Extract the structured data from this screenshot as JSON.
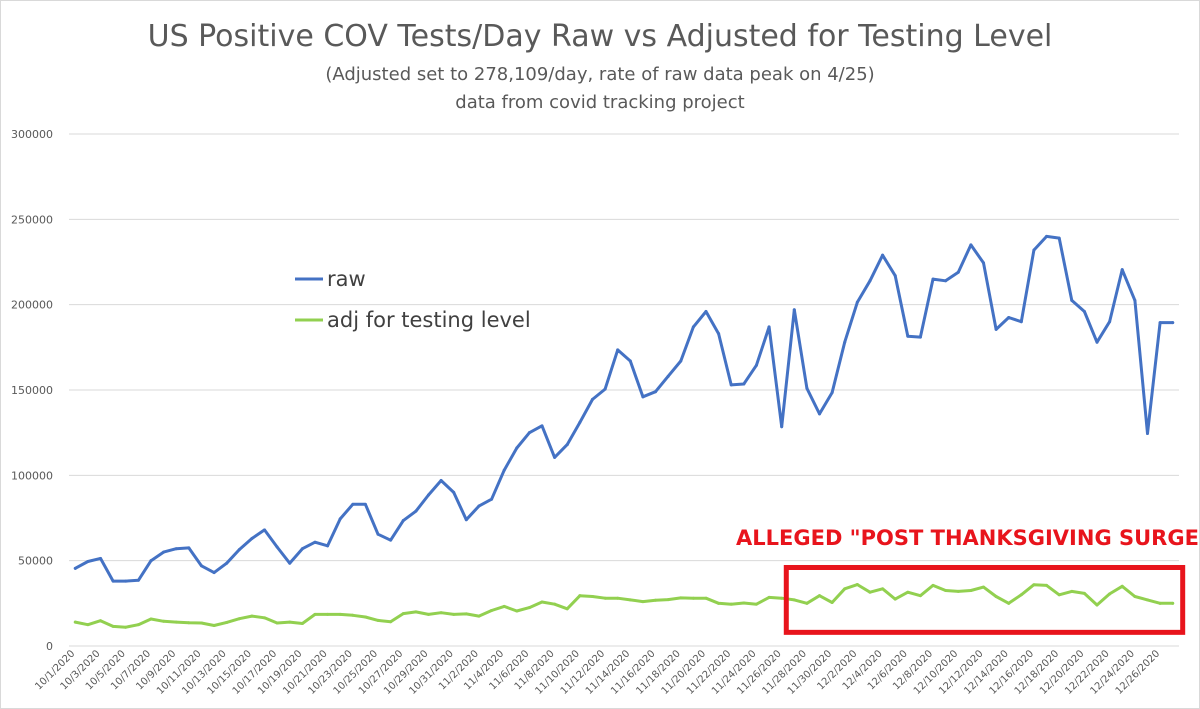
{
  "chart_data": {
    "type": "line",
    "title": "US Positive COV Tests/Day Raw vs Adjusted for Testing Level",
    "subtitle": "(Adjusted set to 278,109/day, rate of raw data peak on 4/25)",
    "subtitle2": "data from covid tracking project",
    "xlabel": "",
    "ylabel": "",
    "ylim": [
      0,
      300000
    ],
    "yticks": [
      0,
      50000,
      100000,
      150000,
      200000,
      250000,
      300000
    ],
    "grid": "horizontal",
    "legend_position": "center-left",
    "x": [
      "10/1/2020",
      "10/2/2020",
      "10/3/2020",
      "10/4/2020",
      "10/5/2020",
      "10/6/2020",
      "10/7/2020",
      "10/8/2020",
      "10/9/2020",
      "10/10/2020",
      "10/11/2020",
      "10/12/2020",
      "10/13/2020",
      "10/14/2020",
      "10/15/2020",
      "10/16/2020",
      "10/17/2020",
      "10/18/2020",
      "10/19/2020",
      "10/20/2020",
      "10/21/2020",
      "10/22/2020",
      "10/23/2020",
      "10/24/2020",
      "10/25/2020",
      "10/26/2020",
      "10/27/2020",
      "10/28/2020",
      "10/29/2020",
      "10/30/2020",
      "10/31/2020",
      "11/1/2020",
      "11/2/2020",
      "11/3/2020",
      "11/4/2020",
      "11/5/2020",
      "11/6/2020",
      "11/7/2020",
      "11/8/2020",
      "11/9/2020",
      "11/10/2020",
      "11/11/2020",
      "11/12/2020",
      "11/13/2020",
      "11/14/2020",
      "11/15/2020",
      "11/16/2020",
      "11/17/2020",
      "11/18/2020",
      "11/19/2020",
      "11/20/2020",
      "11/21/2020",
      "11/22/2020",
      "11/23/2020",
      "11/24/2020",
      "11/25/2020",
      "11/26/2020",
      "11/27/2020",
      "11/28/2020",
      "11/29/2020",
      "11/30/2020",
      "12/1/2020",
      "12/2/2020",
      "12/3/2020",
      "12/4/2020",
      "12/5/2020",
      "12/6/2020",
      "12/7/2020",
      "12/8/2020",
      "12/9/2020",
      "12/10/2020",
      "12/11/2020",
      "12/12/2020",
      "12/13/2020",
      "12/14/2020",
      "12/15/2020",
      "12/16/2020",
      "12/17/2020",
      "12/18/2020",
      "12/19/2020",
      "12/20/2020",
      "12/21/2020",
      "12/22/2020",
      "12/23/2020",
      "12/24/2020",
      "12/25/2020",
      "12/26/2020",
      "12/27/2020"
    ],
    "xtick_labels": [
      "10/1/2020",
      "10/3/2020",
      "10/5/2020",
      "10/7/2020",
      "10/9/2020",
      "10/11/2020",
      "10/13/2020",
      "10/15/2020",
      "10/17/2020",
      "10/19/2020",
      "10/21/2020",
      "10/23/2020",
      "10/25/2020",
      "10/27/2020",
      "10/29/2020",
      "10/31/2020",
      "11/2/2020",
      "11/4/2020",
      "11/6/2020",
      "11/8/2020",
      "11/10/2020",
      "11/12/2020",
      "11/14/2020",
      "11/16/2020",
      "11/18/2020",
      "11/20/2020",
      "11/22/2020",
      "11/24/2020",
      "11/26/2020",
      "11/28/2020",
      "11/30/2020",
      "12/2/2020",
      "12/4/2020",
      "12/6/2020",
      "12/8/2020",
      "12/10/2020",
      "12/12/2020",
      "12/14/2020",
      "12/16/2020",
      "12/18/2020",
      "12/20/2020",
      "12/22/2020",
      "12/24/2020",
      "12/26/2020"
    ],
    "series": [
      {
        "name": "raw",
        "color": "#4472c4",
        "values": [
          45500,
          49500,
          51300,
          38000,
          38000,
          38500,
          50000,
          55000,
          57000,
          57500,
          47000,
          43000,
          48500,
          56500,
          63000,
          68000,
          58000,
          48500,
          57000,
          60800,
          58700,
          74500,
          83000,
          83000,
          65500,
          62000,
          73500,
          79000,
          88500,
          97000,
          90000,
          74000,
          82000,
          86000,
          103000,
          116000,
          125000,
          129000,
          110500,
          118000,
          131000,
          144500,
          150500,
          173500,
          167000,
          146000,
          149000,
          158000,
          167000,
          187000,
          196000,
          183000,
          153000,
          153500,
          164500,
          187000,
          128500,
          197000,
          151000,
          136000,
          148500,
          178000,
          201500,
          214000,
          229000,
          217000,
          181500,
          181000,
          215000,
          214000,
          219000,
          235000,
          224500,
          185500,
          192500,
          190000,
          232000,
          240000,
          239000,
          202500,
          196000,
          178000,
          190000,
          220500,
          202500,
          124500,
          189500,
          189500
        ]
      },
      {
        "name": "adj for testing level",
        "color": "#92d050",
        "values": [
          14000,
          12500,
          14800,
          11500,
          11000,
          12500,
          15800,
          14500,
          14000,
          13600,
          13500,
          12000,
          13800,
          16000,
          17500,
          16500,
          13500,
          14000,
          13200,
          18500,
          18500,
          18500,
          18000,
          17000,
          15000,
          14200,
          19000,
          20000,
          18500,
          19500,
          18500,
          18800,
          17500,
          20800,
          23200,
          20500,
          22500,
          25800,
          24500,
          21800,
          29500,
          29000,
          28000,
          28000,
          27000,
          26000,
          26800,
          27200,
          28200,
          28000,
          28000,
          25000,
          24500,
          25200,
          24500,
          28500,
          28000,
          27000,
          25000,
          29500,
          25500,
          33500,
          36000,
          31500,
          33500,
          27500,
          31500,
          29500,
          35500,
          32500,
          32000,
          32500,
          34500,
          29000,
          25000,
          30000,
          35900,
          35500,
          30000,
          32000,
          30800,
          24000,
          30500,
          35000,
          29000,
          27000,
          25000,
          25000
        ]
      }
    ],
    "annotations": [
      {
        "text": "ALLEGED \"POST THANKSGIVING SURGE\"",
        "color": "#e8141c",
        "box_x_range": [
          "11/27/2020",
          "12/27/2020"
        ],
        "box_y_range": [
          8000,
          46000
        ]
      }
    ]
  }
}
